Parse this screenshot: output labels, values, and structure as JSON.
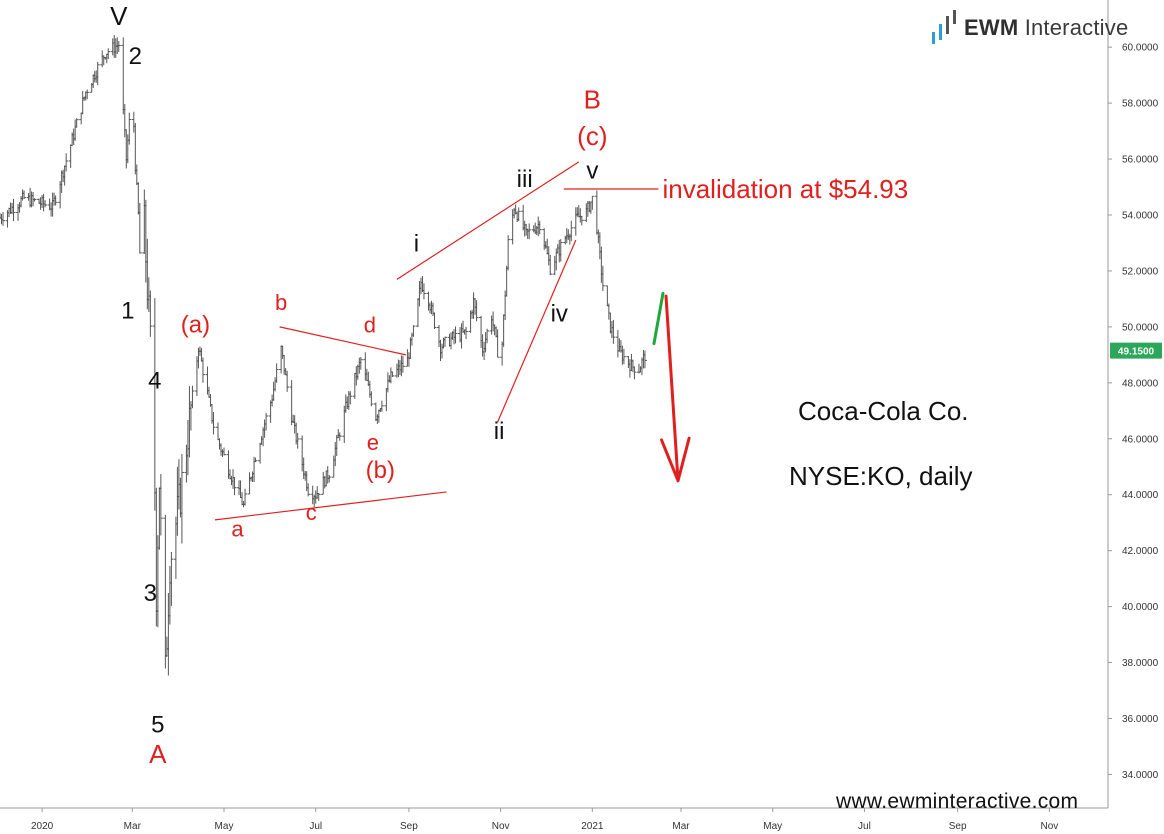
{
  "brand": {
    "name_bold": "EWM",
    "name_light": "Interactive",
    "logo_icon": "bar-chart-icon"
  },
  "website": "www.ewminteractive.com",
  "captions": {
    "company": "Coca-Cola Co.",
    "ticker": "NYSE:KO, daily"
  },
  "invalidation_label": "invalidation at $54.93",
  "current_price_label": "49.1500",
  "colors": {
    "red": "#e0201f",
    "green": "#1fa83a",
    "price_tag": "#2ca65a",
    "bars": "#555555"
  },
  "chart_data": {
    "type": "ohlc",
    "title": "",
    "xlabel": "",
    "ylabel": "",
    "y_axis_side": "right",
    "ylim": [
      32.8,
      61.4
    ],
    "y_ticks": [
      "34.0000",
      "36.0000",
      "38.0000",
      "40.0000",
      "42.0000",
      "44.0000",
      "46.0000",
      "48.0000",
      "50.0000",
      "52.0000",
      "54.0000",
      "56.0000",
      "58.0000",
      "60.0000"
    ],
    "x_ticks": [
      {
        "label": "2020",
        "date": "2020-01-01"
      },
      {
        "label": "Mar",
        "date": "2020-03-01"
      },
      {
        "label": "May",
        "date": "2020-05-01"
      },
      {
        "label": "Jul",
        "date": "2020-07-01"
      },
      {
        "label": "Sep",
        "date": "2020-09-01"
      },
      {
        "label": "Nov",
        "date": "2020-11-01"
      },
      {
        "label": "2021",
        "date": "2021-01-01"
      },
      {
        "label": "Mar",
        "date": "2021-03-01"
      },
      {
        "label": "May",
        "date": "2021-05-01"
      },
      {
        "label": "Jul",
        "date": "2021-07-01"
      },
      {
        "label": "Sep",
        "date": "2021-09-01"
      },
      {
        "label": "Nov",
        "date": "2021-11-01"
      }
    ],
    "xlim": [
      "2019-12-04",
      "2021-12-10"
    ],
    "price_path": [
      [
        "2019-12-04",
        53.9
      ],
      [
        "2019-12-20",
        54.6
      ],
      [
        "2020-01-08",
        54.3
      ],
      [
        "2020-01-20",
        56.5
      ],
      [
        "2020-01-30",
        58.4
      ],
      [
        "2020-02-12",
        59.8
      ],
      [
        "2020-02-21",
        60.1
      ],
      [
        "2020-02-26",
        56.0
      ],
      [
        "2020-03-01",
        58.6
      ],
      [
        "2020-03-03",
        55.8
      ],
      [
        "2020-03-05",
        54.0
      ],
      [
        "2020-03-07",
        51.2
      ],
      [
        "2020-03-09",
        53.6
      ],
      [
        "2020-03-11",
        51.4
      ],
      [
        "2020-03-13",
        49.5
      ],
      [
        "2020-03-15",
        47.9
      ],
      [
        "2020-03-17",
        40.5
      ],
      [
        "2020-03-19",
        44.5
      ],
      [
        "2020-03-23",
        37.6
      ],
      [
        "2020-03-26",
        41.6
      ],
      [
        "2020-04-02",
        44.0
      ],
      [
        "2020-04-10",
        47.5
      ],
      [
        "2020-04-14",
        49.3
      ],
      [
        "2020-04-25",
        46.2
      ],
      [
        "2020-05-05",
        44.8
      ],
      [
        "2020-05-14",
        43.6
      ],
      [
        "2020-05-22",
        45.4
      ],
      [
        "2020-06-02",
        47.5
      ],
      [
        "2020-06-08",
        49.2
      ],
      [
        "2020-06-16",
        46.5
      ],
      [
        "2020-06-26",
        44.2
      ],
      [
        "2020-07-01",
        44.0
      ],
      [
        "2020-07-10",
        44.8
      ],
      [
        "2020-07-22",
        47.3
      ],
      [
        "2020-07-31",
        48.8
      ],
      [
        "2020-08-10",
        46.8
      ],
      [
        "2020-08-20",
        48.2
      ],
      [
        "2020-08-31",
        48.8
      ],
      [
        "2020-09-05",
        50.1
      ],
      [
        "2020-09-09",
        51.6
      ],
      [
        "2020-09-14",
        51.0
      ],
      [
        "2020-09-22",
        49.3
      ],
      [
        "2020-09-30",
        49.6
      ],
      [
        "2020-10-09",
        49.8
      ],
      [
        "2020-10-14",
        50.9
      ],
      [
        "2020-10-20",
        49.2
      ],
      [
        "2020-10-26",
        50.4
      ],
      [
        "2020-11-01",
        48.5
      ],
      [
        "2020-11-06",
        53.0
      ],
      [
        "2020-11-10",
        54.3
      ],
      [
        "2020-11-18",
        53.3
      ],
      [
        "2020-11-27",
        53.7
      ],
      [
        "2020-12-04",
        52.1
      ],
      [
        "2020-12-14",
        53.2
      ],
      [
        "2020-12-22",
        53.9
      ],
      [
        "2020-12-28",
        54.1
      ],
      [
        "2021-01-02",
        54.7
      ],
      [
        "2021-01-05",
        53.0
      ],
      [
        "2021-01-08",
        51.5
      ],
      [
        "2021-01-13",
        50.0
      ],
      [
        "2021-01-19",
        49.1
      ],
      [
        "2021-01-27",
        48.6
      ],
      [
        "2021-02-01",
        48.5
      ],
      [
        "2021-02-06",
        49.1
      ]
    ],
    "last_price": 49.15,
    "invalidation_level": 54.93,
    "projection_green": [
      [
        "2021-02-11",
        49.4
      ],
      [
        "2021-02-17",
        51.2
      ]
    ],
    "projection_red_arrow": [
      [
        "2021-02-19",
        51.1
      ],
      [
        "2021-02-27",
        44.5
      ]
    ],
    "trendlines": [
      {
        "name": "bc-line",
        "from": [
          "2020-06-07",
          50.0
        ],
        "to": [
          "2020-08-30",
          49.0
        ]
      },
      {
        "name": "ac-line",
        "from": [
          "2020-04-25",
          43.1
        ],
        "to": [
          "2020-09-26",
          44.1
        ]
      },
      {
        "name": "i-iii-line",
        "from": [
          "2020-08-24",
          51.7
        ],
        "to": [
          "2020-12-23",
          55.9
        ]
      },
      {
        "name": "ii-iv-line",
        "from": [
          "2020-10-30",
          46.6
        ],
        "to": [
          "2020-12-21",
          53.1
        ]
      },
      {
        "name": "invalidation-line",
        "from": [
          "2020-12-13",
          54.93
        ],
        "to": [
          "2021-02-14",
          54.93
        ]
      }
    ],
    "wave_labels": [
      {
        "text": "V",
        "date": "2020-02-21",
        "price": 60.8,
        "color": "black",
        "size": 26
      },
      {
        "text": "2",
        "date": "2020-03-03",
        "price": 59.4,
        "color": "black",
        "size": 24
      },
      {
        "text": "1",
        "date": "2020-02-27",
        "price": 50.3,
        "color": "black",
        "size": 24
      },
      {
        "text": "(a)",
        "date": "2020-04-12",
        "price": 49.8,
        "color": "red",
        "size": 24
      },
      {
        "text": "4",
        "date": "2020-03-16",
        "price": 47.8,
        "color": "black",
        "size": 24
      },
      {
        "text": "3",
        "date": "2020-03-13",
        "price": 40.2,
        "color": "black",
        "size": 24
      },
      {
        "text": "5",
        "date": "2020-03-18",
        "price": 35.5,
        "color": "black",
        "size": 24
      },
      {
        "text": "A",
        "date": "2020-03-18",
        "price": 34.4,
        "color": "red",
        "size": 26
      },
      {
        "text": "b",
        "date": "2020-06-08",
        "price": 50.6,
        "color": "red",
        "size": 22
      },
      {
        "text": "d",
        "date": "2020-08-06",
        "price": 49.8,
        "color": "red",
        "size": 22
      },
      {
        "text": "e",
        "date": "2020-08-08",
        "price": 45.6,
        "color": "red",
        "size": 22
      },
      {
        "text": "(b)",
        "date": "2020-08-13",
        "price": 44.6,
        "color": "red",
        "size": 24
      },
      {
        "text": "a",
        "date": "2020-05-10",
        "price": 42.5,
        "color": "red",
        "size": 22
      },
      {
        "text": "c",
        "date": "2020-06-28",
        "price": 43.1,
        "color": "red",
        "size": 22
      },
      {
        "text": "i",
        "date": "2020-09-06",
        "price": 52.7,
        "color": "black",
        "size": 24
      },
      {
        "text": "ii",
        "date": "2020-10-31",
        "price": 46.0,
        "color": "black",
        "size": 24
      },
      {
        "text": "iii",
        "date": "2020-11-17",
        "price": 55.0,
        "color": "black",
        "size": 24
      },
      {
        "text": "iv",
        "date": "2020-12-10",
        "price": 50.2,
        "color": "black",
        "size": 24
      },
      {
        "text": "v",
        "date": "2021-01-01",
        "price": 55.3,
        "color": "black",
        "size": 24
      },
      {
        "text": "(c)",
        "date": "2021-01-01",
        "price": 56.5,
        "color": "red",
        "size": 26
      },
      {
        "text": "B",
        "date": "2021-01-01",
        "price": 57.8,
        "color": "red",
        "size": 26
      }
    ]
  }
}
